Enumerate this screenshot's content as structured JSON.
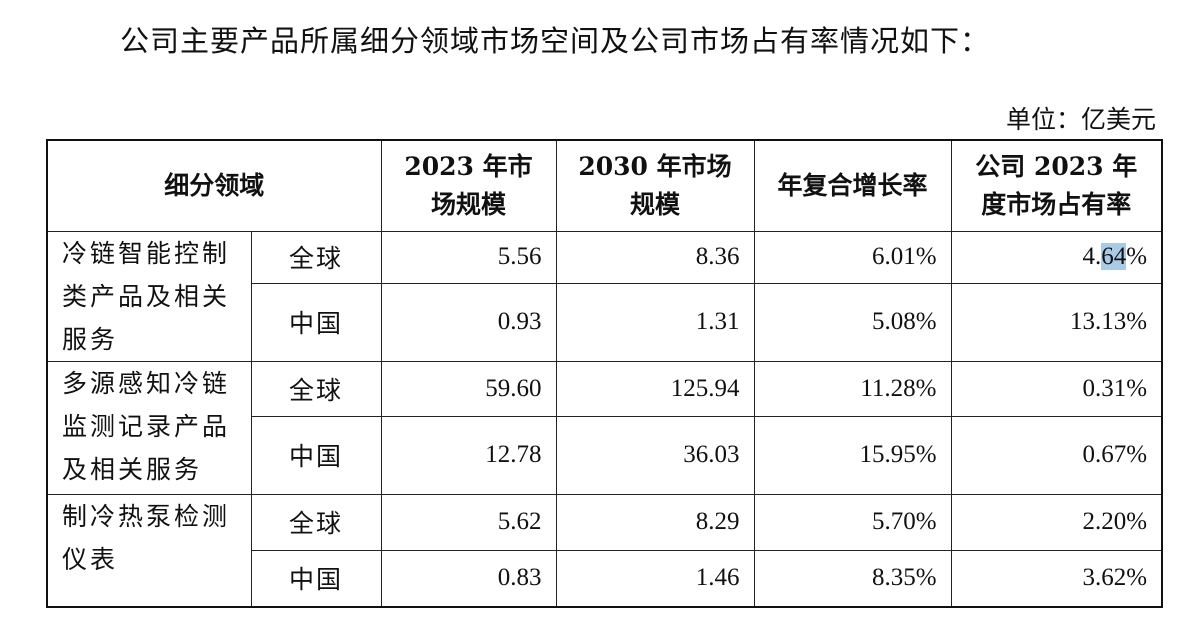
{
  "intro": "公司主要产品所属细分领域市场空间及公司市场占有率情况如下：",
  "unit": "单位：亿美元",
  "table": {
    "headers": {
      "segment": "细分领域",
      "size_2023": "2023 年市场规模",
      "size_2030": "2030 年市场规模",
      "cagr": "年复合增长率",
      "share_2023": "公司 2023 年度市场占有率"
    },
    "segments": [
      {
        "name": "冷链智能控制类产品及相关服务",
        "rows": [
          {
            "region": "全球",
            "size_2023": "5.56",
            "size_2030": "8.36",
            "cagr": "6.01%",
            "share_pre": "4.",
            "share_hl": "64",
            "share_post": "%"
          },
          {
            "region": "中国",
            "size_2023": "0.93",
            "size_2030": "1.31",
            "cagr": "5.08%",
            "share": "13.13%"
          }
        ]
      },
      {
        "name": "多源感知冷链监测记录产品及相关服务",
        "rows": [
          {
            "region": "全球",
            "size_2023": "59.60",
            "size_2030": "125.94",
            "cagr": "11.28%",
            "share": "0.31%"
          },
          {
            "region": "中国",
            "size_2023": "12.78",
            "size_2030": "36.03",
            "cagr": "15.95%",
            "share": "0.67%"
          }
        ]
      },
      {
        "name": "制冷热泵检测仪表",
        "rows": [
          {
            "region": "全球",
            "size_2023": "5.62",
            "size_2030": "8.29",
            "cagr": "5.70%",
            "share": "2.20%"
          },
          {
            "region": "中国",
            "size_2023": "0.83",
            "size_2030": "1.46",
            "cagr": "8.35%",
            "share": "3.62%"
          }
        ]
      }
    ]
  }
}
